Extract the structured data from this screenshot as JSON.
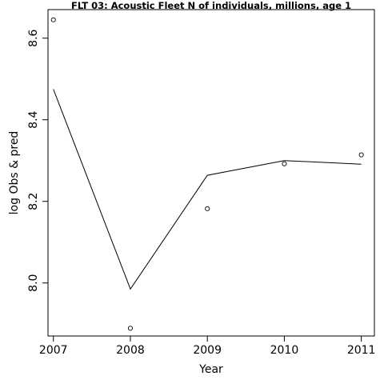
{
  "chart_data": {
    "type": "line",
    "title": "FLT 03: Acoustic Fleet  N of individuals, millions, age 1",
    "xlabel": "Year",
    "ylabel": "log Obs & pred",
    "x_ticks": [
      "2007",
      "2008",
      "2009",
      "2010",
      "2011"
    ],
    "y_ticks": [
      "8.0",
      "8.2",
      "8.4",
      "8.6"
    ],
    "xlim": [
      2006.93,
      2011.17
    ],
    "ylim": [
      7.87,
      8.67
    ],
    "grid": false,
    "series": [
      {
        "kind": "line",
        "x": [
          2007,
          2008,
          2009,
          2010,
          2011
        ],
        "y": [
          8.475,
          7.985,
          8.264,
          8.3,
          8.291
        ]
      },
      {
        "kind": "points",
        "x": [
          2007,
          2008,
          2009,
          2010,
          2011
        ],
        "y": [
          8.645,
          7.889,
          8.182,
          8.292,
          8.314
        ]
      }
    ]
  }
}
